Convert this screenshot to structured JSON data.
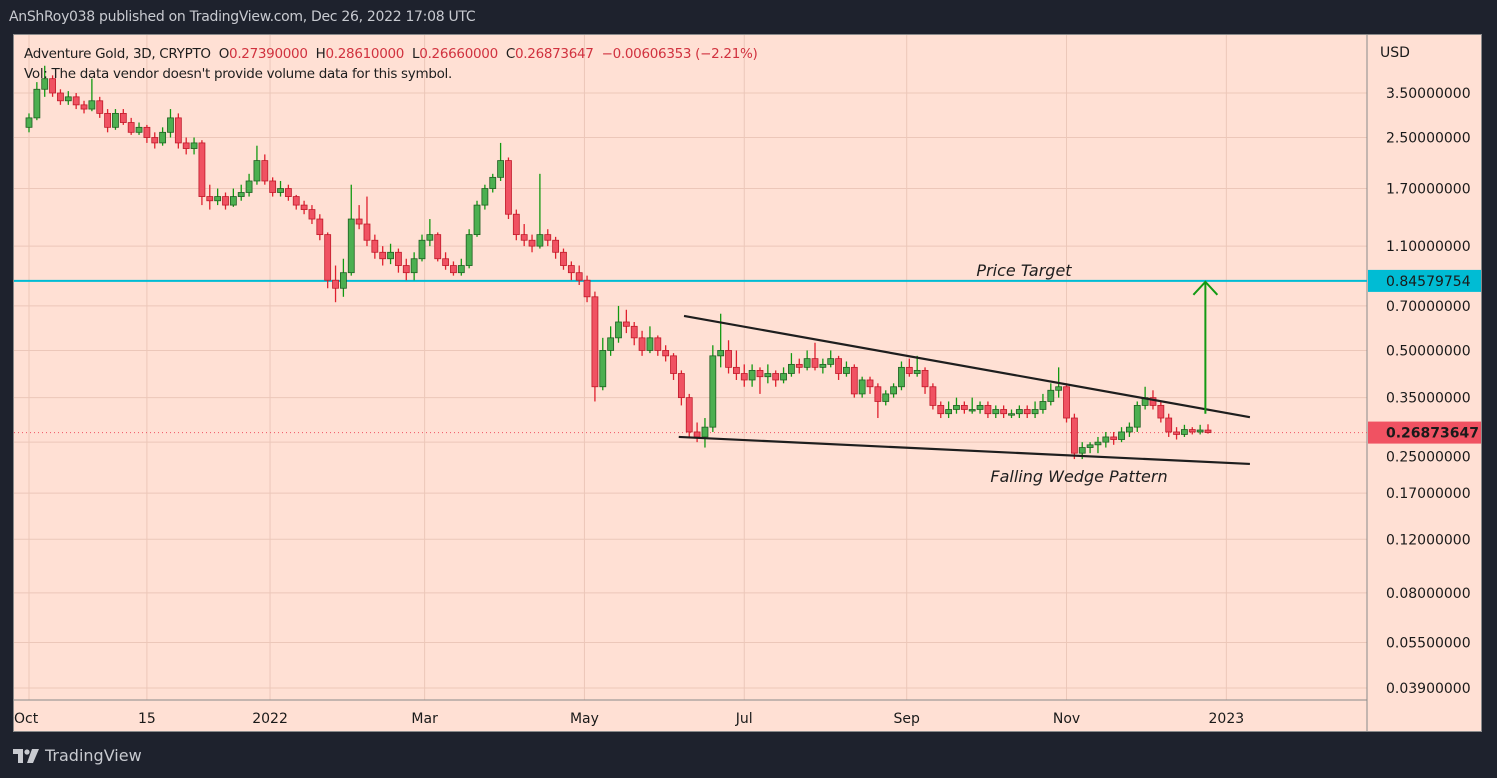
{
  "publisher": "AnShRoy038 published on TradingView.com, Dec 26, 2022 17:08 UTC",
  "legend": {
    "symbol": "Adventure Gold, 3D, CRYPTO",
    "open_label": "O",
    "open": "0.27390000",
    "high_label": "H",
    "high": "0.28610000",
    "low_label": "L",
    "low": "0.26660000",
    "close_label": "C",
    "close": "0.26873647",
    "change": "−0.00606353 (−2.21%)",
    "volume_label": "Vol:",
    "volume_note": "The data vendor doesn't provide volume data for this symbol."
  },
  "footer": {
    "brand": "TradingView",
    "logo_icon": "tradingview-logo-icon"
  },
  "colors": {
    "up": "#4caf50",
    "up_wick": "#119911",
    "down": "#f05262",
    "down_wick": "#e0202e",
    "target": "#00bcd4",
    "current": "#f05262",
    "background": "#ffe0d4"
  },
  "chart_data": {
    "type": "candlestick",
    "title": "Adventure Gold, 3D, CRYPTO",
    "yscale": "log",
    "ylabel": "USD",
    "ylim": [
      0.035,
      4.6
    ],
    "xlim": [
      "2021-09-27",
      "2023-03-10"
    ],
    "grid": true,
    "y_ticks": [
      "3.50000000",
      "2.50000000",
      "1.70000000",
      "1.10000000",
      "0.70000000",
      "0.50000000",
      "0.35000000",
      "0.25000000",
      "0.17000000",
      "0.12000000",
      "0.08000000",
      "0.05500000",
      "0.03900000"
    ],
    "x_ticks": [
      {
        "date": "2021-10-01",
        "label": "Oct"
      },
      {
        "date": "2021-11-15",
        "label": "15"
      },
      {
        "date": "2022-01-01",
        "label": "2022"
      },
      {
        "date": "2022-03-01",
        "label": "Mar"
      },
      {
        "date": "2022-05-01",
        "label": "May"
      },
      {
        "date": "2022-07-01",
        "label": "Jul"
      },
      {
        "date": "2022-09-01",
        "label": "Sep"
      },
      {
        "date": "2022-11-01",
        "label": "Nov"
      },
      {
        "date": "2023-01-01",
        "label": "2023"
      }
    ],
    "price_target": {
      "value": 0.84579754,
      "value_label": "0.84579754",
      "label": "Price Target"
    },
    "current_price": {
      "value": 0.26873647,
      "label": "0.26873647"
    },
    "wedge": {
      "label": "Falling Wedge Pattern",
      "upper": [
        [
          "2022-06-08",
          0.649
        ],
        [
          "2023-01-10",
          0.302
        ]
      ],
      "lower": [
        [
          "2022-06-06",
          0.26
        ],
        [
          "2023-01-10",
          0.212
        ]
      ]
    },
    "target_arrow": {
      "date": "2022-12-24",
      "from": 0.31,
      "to": 0.84
    },
    "candles_columns": [
      "date",
      "open",
      "high",
      "low",
      "close"
    ],
    "candles": [
      [
        "2021-10-01",
        2.7,
        3.0,
        2.6,
        2.9
      ],
      [
        "2021-10-04",
        2.9,
        3.8,
        2.85,
        3.6
      ],
      [
        "2021-10-07",
        3.6,
        4.3,
        3.4,
        3.9
      ],
      [
        "2021-10-10",
        3.9,
        4.0,
        3.4,
        3.5
      ],
      [
        "2021-10-13",
        3.5,
        3.6,
        3.2,
        3.3
      ],
      [
        "2021-10-16",
        3.3,
        3.55,
        3.2,
        3.4
      ],
      [
        "2021-10-19",
        3.4,
        3.5,
        3.1,
        3.2
      ],
      [
        "2021-10-22",
        3.2,
        3.3,
        3.0,
        3.1
      ],
      [
        "2021-10-25",
        3.1,
        3.9,
        3.05,
        3.3
      ],
      [
        "2021-10-28",
        3.3,
        3.4,
        2.9,
        3.0
      ],
      [
        "2021-10-31",
        3.0,
        3.1,
        2.6,
        2.7
      ],
      [
        "2021-11-03",
        2.7,
        3.1,
        2.65,
        3.0
      ],
      [
        "2021-11-06",
        3.0,
        3.1,
        2.75,
        2.8
      ],
      [
        "2021-11-09",
        2.8,
        2.9,
        2.55,
        2.6
      ],
      [
        "2021-11-12",
        2.6,
        2.8,
        2.55,
        2.7
      ],
      [
        "2021-11-15",
        2.7,
        2.75,
        2.4,
        2.5
      ],
      [
        "2021-11-18",
        2.5,
        2.6,
        2.3,
        2.4
      ],
      [
        "2021-11-21",
        2.4,
        2.7,
        2.35,
        2.6
      ],
      [
        "2021-11-24",
        2.6,
        3.1,
        2.5,
        2.9
      ],
      [
        "2021-11-27",
        2.9,
        3.0,
        2.3,
        2.4
      ],
      [
        "2021-11-30",
        2.4,
        2.5,
        2.2,
        2.3
      ],
      [
        "2021-12-03",
        2.3,
        2.5,
        2.2,
        2.4
      ],
      [
        "2021-12-06",
        2.4,
        2.45,
        1.5,
        1.6
      ],
      [
        "2021-12-09",
        1.6,
        1.75,
        1.45,
        1.55
      ],
      [
        "2021-12-12",
        1.55,
        1.7,
        1.5,
        1.6
      ],
      [
        "2021-12-15",
        1.6,
        1.65,
        1.45,
        1.5
      ],
      [
        "2021-12-18",
        1.5,
        1.7,
        1.48,
        1.6
      ],
      [
        "2021-12-21",
        1.6,
        1.75,
        1.55,
        1.65
      ],
      [
        "2021-12-24",
        1.65,
        1.9,
        1.6,
        1.8
      ],
      [
        "2021-12-27",
        1.8,
        2.35,
        1.75,
        2.1
      ],
      [
        "2021-12-30",
        2.1,
        2.2,
        1.75,
        1.8
      ],
      [
        "2022-01-02",
        1.8,
        1.85,
        1.6,
        1.65
      ],
      [
        "2022-01-05",
        1.65,
        1.8,
        1.6,
        1.7
      ],
      [
        "2022-01-08",
        1.7,
        1.75,
        1.55,
        1.6
      ],
      [
        "2022-01-11",
        1.6,
        1.62,
        1.45,
        1.5
      ],
      [
        "2022-01-14",
        1.5,
        1.55,
        1.4,
        1.45
      ],
      [
        "2022-01-17",
        1.45,
        1.5,
        1.3,
        1.35
      ],
      [
        "2022-01-20",
        1.35,
        1.4,
        1.15,
        1.2
      ],
      [
        "2022-01-23",
        1.2,
        1.22,
        0.8,
        0.85
      ],
      [
        "2022-01-26",
        0.85,
        0.95,
        0.72,
        0.8
      ],
      [
        "2022-01-29",
        0.8,
        1.0,
        0.75,
        0.9
      ],
      [
        "2022-02-01",
        0.9,
        1.75,
        0.88,
        1.35
      ],
      [
        "2022-02-04",
        1.35,
        1.5,
        1.25,
        1.3
      ],
      [
        "2022-02-07",
        1.3,
        1.6,
        1.1,
        1.15
      ],
      [
        "2022-02-10",
        1.15,
        1.2,
        1.0,
        1.05
      ],
      [
        "2022-02-13",
        1.05,
        1.1,
        0.95,
        1.0
      ],
      [
        "2022-02-16",
        1.0,
        1.12,
        0.96,
        1.05
      ],
      [
        "2022-02-19",
        1.05,
        1.08,
        0.9,
        0.95
      ],
      [
        "2022-02-22",
        0.95,
        1.0,
        0.85,
        0.9
      ],
      [
        "2022-02-25",
        0.9,
        1.05,
        0.85,
        1.0
      ],
      [
        "2022-02-28",
        1.0,
        1.2,
        0.98,
        1.15
      ],
      [
        "2022-03-03",
        1.15,
        1.35,
        1.1,
        1.2
      ],
      [
        "2022-03-06",
        1.2,
        1.22,
        0.98,
        1.0
      ],
      [
        "2022-03-09",
        1.0,
        1.05,
        0.92,
        0.95
      ],
      [
        "2022-03-12",
        0.95,
        0.98,
        0.88,
        0.9
      ],
      [
        "2022-03-15",
        0.9,
        1.0,
        0.88,
        0.95
      ],
      [
        "2022-03-18",
        0.95,
        1.25,
        0.93,
        1.2
      ],
      [
        "2022-03-21",
        1.2,
        1.55,
        1.18,
        1.5
      ],
      [
        "2022-03-24",
        1.5,
        1.75,
        1.45,
        1.7
      ],
      [
        "2022-03-27",
        1.7,
        1.9,
        1.65,
        1.85
      ],
      [
        "2022-03-30",
        1.85,
        2.4,
        1.8,
        2.1
      ],
      [
        "2022-04-02",
        2.1,
        2.15,
        1.35,
        1.4
      ],
      [
        "2022-04-05",
        1.4,
        1.45,
        1.15,
        1.2
      ],
      [
        "2022-04-08",
        1.2,
        1.3,
        1.1,
        1.15
      ],
      [
        "2022-04-11",
        1.15,
        1.2,
        1.05,
        1.1
      ],
      [
        "2022-04-14",
        1.1,
        1.9,
        1.08,
        1.2
      ],
      [
        "2022-04-17",
        1.2,
        1.25,
        1.1,
        1.15
      ],
      [
        "2022-04-20",
        1.15,
        1.18,
        1.0,
        1.05
      ],
      [
        "2022-04-23",
        1.05,
        1.08,
        0.92,
        0.95
      ],
      [
        "2022-04-26",
        0.95,
        0.98,
        0.85,
        0.9
      ],
      [
        "2022-04-29",
        0.9,
        0.95,
        0.82,
        0.85
      ],
      [
        "2022-05-02",
        0.85,
        0.88,
        0.72,
        0.75
      ],
      [
        "2022-05-05",
        0.75,
        0.78,
        0.34,
        0.38
      ],
      [
        "2022-05-08",
        0.38,
        0.55,
        0.37,
        0.5
      ],
      [
        "2022-05-11",
        0.5,
        0.6,
        0.48,
        0.55
      ],
      [
        "2022-05-14",
        0.55,
        0.7,
        0.53,
        0.62
      ],
      [
        "2022-05-17",
        0.62,
        0.68,
        0.57,
        0.6
      ],
      [
        "2022-05-20",
        0.6,
        0.62,
        0.52,
        0.55
      ],
      [
        "2022-05-23",
        0.55,
        0.58,
        0.48,
        0.5
      ],
      [
        "2022-05-26",
        0.5,
        0.6,
        0.49,
        0.55
      ],
      [
        "2022-05-29",
        0.55,
        0.56,
        0.48,
        0.5
      ],
      [
        "2022-06-01",
        0.5,
        0.52,
        0.46,
        0.48
      ],
      [
        "2022-06-04",
        0.48,
        0.49,
        0.4,
        0.42
      ],
      [
        "2022-06-07",
        0.42,
        0.43,
        0.33,
        0.35
      ],
      [
        "2022-06-10",
        0.35,
        0.36,
        0.26,
        0.27
      ],
      [
        "2022-06-13",
        0.27,
        0.29,
        0.25,
        0.26
      ],
      [
        "2022-06-16",
        0.26,
        0.3,
        0.24,
        0.28
      ],
      [
        "2022-06-19",
        0.28,
        0.52,
        0.27,
        0.48
      ],
      [
        "2022-06-22",
        0.48,
        0.66,
        0.44,
        0.5
      ],
      [
        "2022-06-25",
        0.5,
        0.54,
        0.42,
        0.44
      ],
      [
        "2022-06-28",
        0.44,
        0.5,
        0.4,
        0.42
      ],
      [
        "2022-07-01",
        0.42,
        0.45,
        0.38,
        0.4
      ],
      [
        "2022-07-04",
        0.4,
        0.45,
        0.38,
        0.43
      ],
      [
        "2022-07-07",
        0.43,
        0.44,
        0.36,
        0.41
      ],
      [
        "2022-07-10",
        0.41,
        0.45,
        0.39,
        0.42
      ],
      [
        "2022-07-13",
        0.42,
        0.43,
        0.38,
        0.4
      ],
      [
        "2022-07-16",
        0.4,
        0.44,
        0.39,
        0.42
      ],
      [
        "2022-07-19",
        0.42,
        0.49,
        0.41,
        0.45
      ],
      [
        "2022-07-22",
        0.45,
        0.47,
        0.42,
        0.44
      ],
      [
        "2022-07-25",
        0.44,
        0.5,
        0.43,
        0.47
      ],
      [
        "2022-07-28",
        0.47,
        0.53,
        0.43,
        0.44
      ],
      [
        "2022-07-31",
        0.44,
        0.47,
        0.42,
        0.45
      ],
      [
        "2022-08-03",
        0.45,
        0.5,
        0.44,
        0.47
      ],
      [
        "2022-08-06",
        0.47,
        0.48,
        0.4,
        0.42
      ],
      [
        "2022-08-09",
        0.42,
        0.46,
        0.41,
        0.44
      ],
      [
        "2022-08-12",
        0.44,
        0.45,
        0.35,
        0.36
      ],
      [
        "2022-08-15",
        0.36,
        0.41,
        0.35,
        0.4
      ],
      [
        "2022-08-18",
        0.4,
        0.41,
        0.36,
        0.38
      ],
      [
        "2022-08-21",
        0.38,
        0.39,
        0.3,
        0.34
      ],
      [
        "2022-08-24",
        0.34,
        0.37,
        0.33,
        0.36
      ],
      [
        "2022-08-27",
        0.36,
        0.39,
        0.35,
        0.38
      ],
      [
        "2022-08-30",
        0.38,
        0.46,
        0.37,
        0.44
      ],
      [
        "2022-09-02",
        0.44,
        0.47,
        0.41,
        0.42
      ],
      [
        "2022-09-05",
        0.42,
        0.48,
        0.41,
        0.43
      ],
      [
        "2022-09-08",
        0.43,
        0.44,
        0.36,
        0.38
      ],
      [
        "2022-09-11",
        0.38,
        0.39,
        0.32,
        0.33
      ],
      [
        "2022-09-14",
        0.33,
        0.34,
        0.3,
        0.31
      ],
      [
        "2022-09-17",
        0.31,
        0.34,
        0.3,
        0.32
      ],
      [
        "2022-09-20",
        0.32,
        0.35,
        0.31,
        0.33
      ],
      [
        "2022-09-23",
        0.33,
        0.34,
        0.31,
        0.32
      ],
      [
        "2022-09-26",
        0.32,
        0.35,
        0.31,
        0.32
      ],
      [
        "2022-09-29",
        0.32,
        0.34,
        0.31,
        0.33
      ],
      [
        "2022-10-02",
        0.33,
        0.34,
        0.3,
        0.31
      ],
      [
        "2022-10-05",
        0.31,
        0.33,
        0.3,
        0.32
      ],
      [
        "2022-10-08",
        0.32,
        0.33,
        0.3,
        0.31
      ],
      [
        "2022-10-11",
        0.31,
        0.32,
        0.3,
        0.31
      ],
      [
        "2022-10-14",
        0.31,
        0.33,
        0.3,
        0.32
      ],
      [
        "2022-10-17",
        0.32,
        0.33,
        0.3,
        0.31
      ],
      [
        "2022-10-20",
        0.31,
        0.34,
        0.3,
        0.32
      ],
      [
        "2022-10-23",
        0.32,
        0.36,
        0.31,
        0.34
      ],
      [
        "2022-10-26",
        0.34,
        0.39,
        0.33,
        0.37
      ],
      [
        "2022-10-29",
        0.37,
        0.44,
        0.35,
        0.38
      ],
      [
        "2022-11-01",
        0.38,
        0.39,
        0.29,
        0.3
      ],
      [
        "2022-11-04",
        0.3,
        0.31,
        0.22,
        0.23
      ],
      [
        "2022-11-07",
        0.23,
        0.25,
        0.22,
        0.24
      ],
      [
        "2022-11-10",
        0.24,
        0.25,
        0.23,
        0.245
      ],
      [
        "2022-11-13",
        0.245,
        0.26,
        0.23,
        0.25
      ],
      [
        "2022-11-16",
        0.25,
        0.27,
        0.24,
        0.26
      ],
      [
        "2022-11-19",
        0.26,
        0.27,
        0.245,
        0.255
      ],
      [
        "2022-11-22",
        0.255,
        0.28,
        0.25,
        0.27
      ],
      [
        "2022-11-25",
        0.27,
        0.29,
        0.26,
        0.28
      ],
      [
        "2022-11-28",
        0.28,
        0.34,
        0.27,
        0.33
      ],
      [
        "2022-12-01",
        0.33,
        0.38,
        0.32,
        0.35
      ],
      [
        "2022-12-04",
        0.35,
        0.37,
        0.32,
        0.33
      ],
      [
        "2022-12-07",
        0.33,
        0.34,
        0.29,
        0.3
      ],
      [
        "2022-12-10",
        0.3,
        0.31,
        0.26,
        0.27
      ],
      [
        "2022-12-13",
        0.27,
        0.28,
        0.255,
        0.265
      ],
      [
        "2022-12-16",
        0.265,
        0.285,
        0.26,
        0.275
      ],
      [
        "2022-12-19",
        0.275,
        0.28,
        0.265,
        0.27
      ],
      [
        "2022-12-22",
        0.27,
        0.285,
        0.265,
        0.274
      ],
      [
        "2022-12-25",
        0.2739,
        0.2861,
        0.2666,
        0.26873647
      ]
    ]
  }
}
